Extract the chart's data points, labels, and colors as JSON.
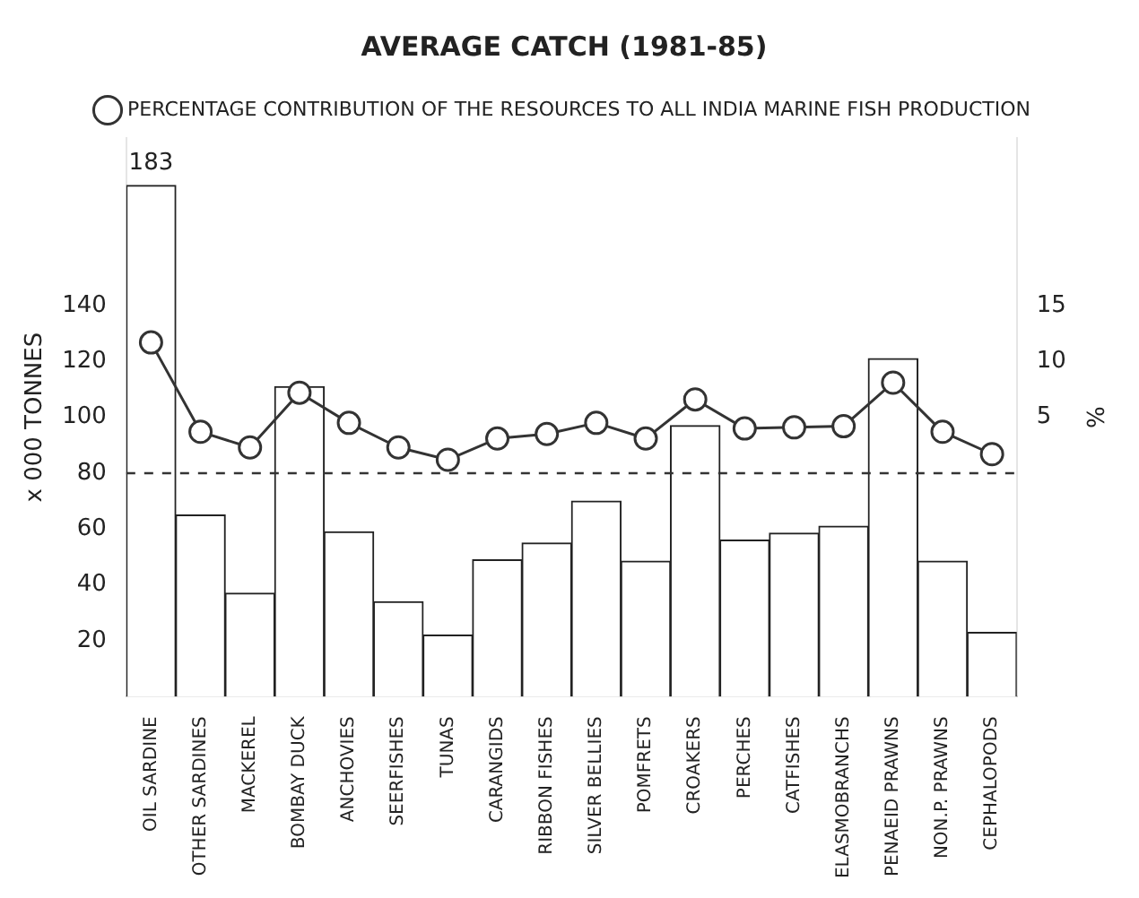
{
  "chart_data": {
    "type": "bar",
    "title": "AVERAGE CATCH (1981-85)",
    "ylabel": "x 000 TONNES",
    "y2label": "%",
    "categories": [
      "OIL SARDINE",
      "OTHER SARDINES",
      "MACKEREL",
      "BOMBAY DUCK",
      "ANCHOVIES",
      "SEERFISHES",
      "TUNAS",
      "CARANGIDS",
      "RIBBON FISHES",
      "SILVER BELLIES",
      "POMFRETS",
      "CROAKERS",
      "PERCHES",
      "CATFISHES",
      "ELASMOBRANCHS",
      "PENAEID PRAWNS",
      "NON.P. PRAWNS",
      "CEPHALOPODS"
    ],
    "series": [
      {
        "color": "#ffffff",
        "values": [
          183,
          65,
          37,
          111,
          59,
          34,
          22,
          49,
          55,
          70,
          48.5,
          97,
          56,
          58.5,
          61,
          121,
          48.5,
          23
        ],
        "value_labels": [
          "183",
          null,
          null,
          null,
          null,
          null,
          null,
          null,
          null,
          null,
          null,
          null,
          null,
          null,
          null,
          null,
          null,
          null
        ]
      },
      {
        "type": "line",
        "axis": "y2",
        "name": "PERCENTAGE CONTRIBUTION OF THE RESOURCES TO ALL INDIA MARINE FISH PRODUCTION",
        "color": "#333333",
        "values": [
          11.7,
          3.7,
          2.3,
          7.2,
          4.5,
          2.3,
          1.2,
          3.1,
          3.5,
          4.5,
          3.1,
          6.6,
          4.0,
          4.1,
          4.2,
          8.1,
          3.7,
          1.7
        ]
      }
    ],
    "ylim": [
      0,
      200
    ],
    "yticks": [
      20,
      40,
      60,
      80,
      100,
      120,
      140
    ],
    "y2lim": [
      -20,
      30
    ],
    "y2ticks": [
      5,
      10,
      15
    ],
    "ref_lines": [
      {
        "axis": "y2",
        "value": 0,
        "line_style": "dashed",
        "color": "#333333"
      }
    ],
    "marker": "circle",
    "grid": false,
    "legend": "top"
  }
}
